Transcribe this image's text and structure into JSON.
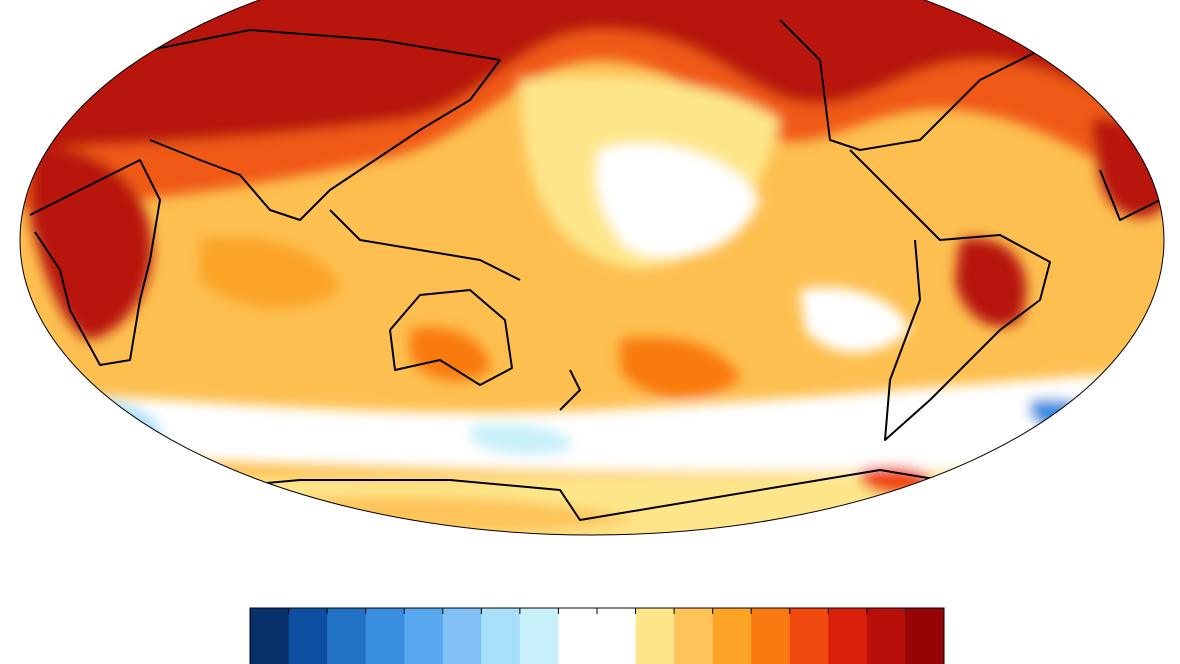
{
  "colorbar": {
    "colors": [
      "#08306b",
      "#0d4ea0",
      "#2171c5",
      "#3a8ee0",
      "#58a8f0",
      "#80c0f5",
      "#a8e0fa",
      "#c8f0fa",
      "#ffffff",
      "#ffffff",
      "#fde68a",
      "#fdc45a",
      "#fba425",
      "#f97a10",
      "#f04a10",
      "#d8200a",
      "#b80f0a",
      "#960505"
    ]
  }
}
